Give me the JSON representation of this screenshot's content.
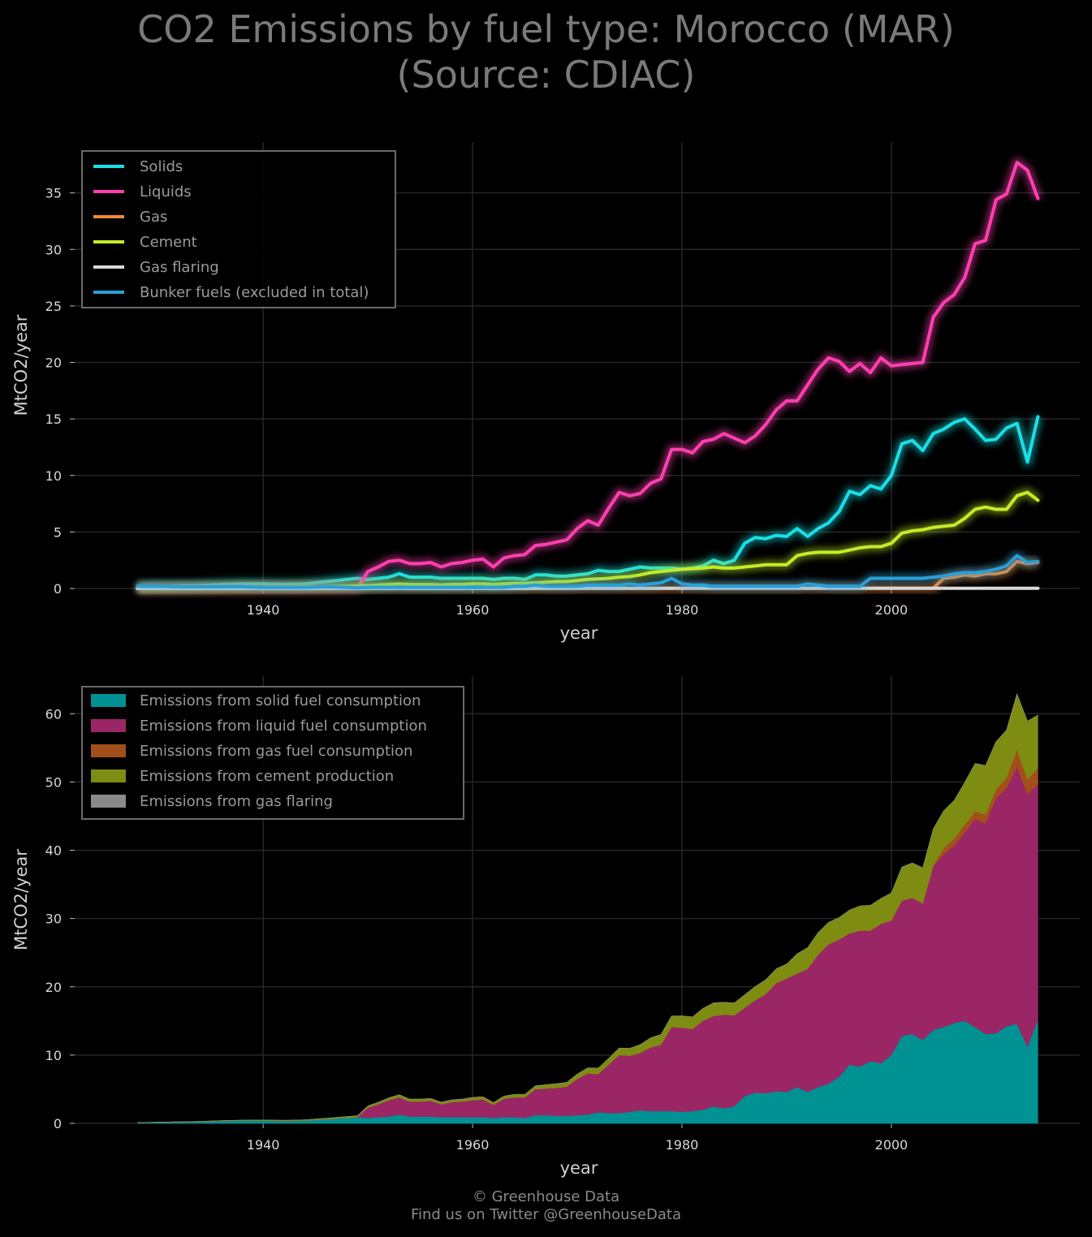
{
  "title": {
    "line1": "CO2 Emissions by fuel type: Morocco (MAR)",
    "line2": "(Source: CDIAC)"
  },
  "footer": {
    "line1": "© Greenhouse Data",
    "line2": "Find us on Twitter @GreenhouseData"
  },
  "colors": {
    "background": "#000000",
    "grid": "#262626",
    "solids": "#19dfe6",
    "liquids": "#ff3eb0",
    "gas": "#f0883a",
    "cement": "#c4ec28",
    "gas_flaring": "#d9d9d9",
    "bunker": "#2a9fd6",
    "solid_area": "#009192",
    "liquid_area": "#9a2666",
    "gas_area": "#a34f1a",
    "cement_area": "#7f8c12",
    "flaring_area": "#8a8a8a"
  },
  "chart_data": [
    {
      "type": "line",
      "xlabel": "year",
      "ylabel": "MtCO2/year",
      "xlim": [
        1922,
        2018
      ],
      "ylim": [
        0,
        39.5
      ],
      "x_ticks": [
        1940,
        1960,
        1980,
        2000
      ],
      "y_ticks": [
        0,
        5,
        10,
        15,
        20,
        25,
        30,
        35
      ],
      "grid": true,
      "legend_position": "top-left",
      "x": [
        1928,
        1930,
        1932,
        1934,
        1936,
        1938,
        1940,
        1942,
        1944,
        1946,
        1948,
        1949,
        1950,
        1951,
        1952,
        1953,
        1954,
        1955,
        1956,
        1957,
        1958,
        1959,
        1960,
        1961,
        1962,
        1963,
        1964,
        1965,
        1966,
        1967,
        1968,
        1969,
        1970,
        1971,
        1972,
        1973,
        1974,
        1975,
        1976,
        1977,
        1978,
        1979,
        1980,
        1981,
        1982,
        1983,
        1984,
        1985,
        1986,
        1987,
        1988,
        1989,
        1990,
        1991,
        1992,
        1993,
        1994,
        1995,
        1996,
        1997,
        1998,
        1999,
        2000,
        2001,
        2002,
        2003,
        2004,
        2005,
        2006,
        2007,
        2008,
        2009,
        2010,
        2011,
        2012,
        2013,
        2014
      ],
      "series": [
        {
          "name": "Solids",
          "color": "#19dfe6",
          "values": [
            0.1,
            0.15,
            0.2,
            0.25,
            0.35,
            0.4,
            0.4,
            0.35,
            0.4,
            0.6,
            0.8,
            0.9,
            0.8,
            0.9,
            1.0,
            1.3,
            1.0,
            1.0,
            1.0,
            0.9,
            0.9,
            0.9,
            0.9,
            0.9,
            0.8,
            0.9,
            0.9,
            0.8,
            1.2,
            1.2,
            1.1,
            1.1,
            1.2,
            1.3,
            1.6,
            1.5,
            1.5,
            1.7,
            1.9,
            1.8,
            1.8,
            1.8,
            1.7,
            1.8,
            2.0,
            2.5,
            2.2,
            2.5,
            4.0,
            4.5,
            4.4,
            4.7,
            4.6,
            5.3,
            4.6,
            5.3,
            5.8,
            6.8,
            8.6,
            8.3,
            9.1,
            8.8,
            10.0,
            12.8,
            13.1,
            12.2,
            13.7,
            14.1,
            14.7,
            15.0,
            14.1,
            13.1,
            13.2,
            14.2,
            14.6,
            11.2,
            15.2
          ]
        },
        {
          "name": "Liquids",
          "color": "#ff3eb0",
          "values": [
            0,
            0,
            0,
            0,
            0,
            0,
            0,
            0,
            0,
            0,
            0,
            0,
            1.5,
            1.9,
            2.4,
            2.5,
            2.2,
            2.2,
            2.3,
            1.9,
            2.2,
            2.3,
            2.5,
            2.6,
            1.9,
            2.7,
            2.9,
            3.0,
            3.8,
            3.9,
            4.1,
            4.3,
            5.3,
            6.0,
            5.6,
            7.1,
            8.5,
            8.2,
            8.4,
            9.3,
            9.7,
            12.3,
            12.3,
            12.0,
            13.0,
            13.2,
            13.7,
            13.3,
            12.9,
            13.5,
            14.5,
            15.8,
            16.6,
            16.6,
            18.0,
            19.4,
            20.4,
            20.1,
            19.2,
            19.9,
            19.1,
            20.4,
            19.7,
            19.8,
            19.9,
            20.0,
            24.0,
            25.3,
            26.0,
            27.5,
            30.5,
            30.8,
            34.4,
            34.9,
            37.7,
            37.0,
            34.5
          ]
        },
        {
          "name": "Gas",
          "color": "#f0883a",
          "values": [
            0,
            0,
            0,
            0,
            0,
            0,
            0,
            0,
            0,
            0,
            0,
            0,
            0,
            0,
            0,
            0,
            0,
            0,
            0,
            0,
            0,
            0,
            0,
            0,
            0,
            0,
            0,
            0,
            0,
            0,
            0,
            0,
            0.02,
            0.02,
            0.02,
            0.02,
            0.02,
            0.02,
            0.02,
            0.02,
            0.02,
            0.02,
            0.03,
            0.03,
            0.03,
            0.03,
            0.03,
            0.03,
            0.03,
            0.03,
            0.03,
            0.03,
            0.03,
            0.03,
            0.03,
            0.03,
            0.03,
            0.03,
            0.03,
            0.03,
            0.03,
            0.03,
            0.03,
            0.03,
            0.03,
            0.03,
            0.03,
            0.9,
            1.0,
            1.2,
            1.1,
            1.3,
            1.3,
            1.5,
            2.4,
            2.2,
            2.3
          ]
        },
        {
          "name": "Cement",
          "color": "#c4ec28",
          "values": [
            0.02,
            0.03,
            0.04,
            0.05,
            0.06,
            0.08,
            0.1,
            0.1,
            0.12,
            0.15,
            0.2,
            0.22,
            0.25,
            0.3,
            0.35,
            0.4,
            0.35,
            0.35,
            0.35,
            0.3,
            0.35,
            0.35,
            0.4,
            0.4,
            0.35,
            0.4,
            0.45,
            0.45,
            0.5,
            0.55,
            0.6,
            0.6,
            0.7,
            0.8,
            0.85,
            0.9,
            1.0,
            1.05,
            1.2,
            1.4,
            1.5,
            1.6,
            1.7,
            1.75,
            1.8,
            1.9,
            1.8,
            1.8,
            1.9,
            2.0,
            2.1,
            2.1,
            2.1,
            2.9,
            3.1,
            3.2,
            3.2,
            3.2,
            3.4,
            3.6,
            3.7,
            3.7,
            4.0,
            4.9,
            5.1,
            5.2,
            5.4,
            5.5,
            5.6,
            6.2,
            7.0,
            7.2,
            7.0,
            7.0,
            8.2,
            8.5,
            7.8
          ]
        },
        {
          "name": "Gas flaring",
          "color": "#d9d9d9",
          "values": [
            0,
            0,
            0,
            0,
            0,
            0,
            0,
            0,
            0,
            0,
            0,
            0,
            0,
            0,
            0,
            0,
            0,
            0,
            0,
            0,
            0,
            0,
            0,
            0,
            0,
            0,
            0,
            0,
            0.02,
            0.02,
            0.02,
            0.02,
            0.02,
            0.02,
            0.02,
            0.02,
            0.02,
            0.02,
            0.02,
            0.02,
            0.02,
            0.02,
            0.02,
            0.02,
            0.02,
            0.02,
            0.02,
            0.02,
            0.02,
            0.02,
            0.02,
            0.02,
            0.02,
            0.02,
            0.02,
            0.02,
            0.02,
            0.02,
            0.02,
            0.02,
            0.02,
            0.02,
            0.02,
            0.02,
            0.02,
            0.02,
            0.02,
            0.02,
            0.02,
            0.02,
            0.02,
            0.02,
            0.02,
            0.02,
            0.02,
            0.02,
            0.02
          ]
        },
        {
          "name": "Bunker fuels (excluded in total)",
          "color": "#2a9fd6",
          "values": [
            0.2,
            0.2,
            0.15,
            0.15,
            0.15,
            0.15,
            0.1,
            0.1,
            0.1,
            0.15,
            0.1,
            0.05,
            0.1,
            0.1,
            0.1,
            0.1,
            0.1,
            0.1,
            0.1,
            0.1,
            0.1,
            0.1,
            0.1,
            0.1,
            0.1,
            0.1,
            0.2,
            0.2,
            0.3,
            0.2,
            0.2,
            0.2,
            0.2,
            0.3,
            0.3,
            0.3,
            0.3,
            0.4,
            0.3,
            0.4,
            0.5,
            0.9,
            0.4,
            0.3,
            0.3,
            0.2,
            0.2,
            0.2,
            0.2,
            0.2,
            0.2,
            0.2,
            0.2,
            0.2,
            0.4,
            0.3,
            0.2,
            0.2,
            0.2,
            0.2,
            0.9,
            0.9,
            0.9,
            0.9,
            0.9,
            0.9,
            1.0,
            1.1,
            1.3,
            1.4,
            1.4,
            1.5,
            1.7,
            2.0,
            2.9,
            2.3,
            2.4
          ]
        }
      ]
    },
    {
      "type": "area",
      "stacked": true,
      "xlabel": "year",
      "ylabel": "MtCO2/year",
      "xlim": [
        1922,
        2018
      ],
      "ylim": [
        0,
        65.5
      ],
      "x_ticks": [
        1940,
        1960,
        1980,
        2000
      ],
      "y_ticks": [
        0,
        10,
        20,
        30,
        40,
        50,
        60
      ],
      "grid": true,
      "legend_position": "top-left",
      "series_source": "first chart: Solids, Liquids, Gas, Cement, Gas flaring (bunker fuels excluded)",
      "series": [
        {
          "name": "Emissions from solid fuel consumption",
          "color": "#009192",
          "source": "Solids"
        },
        {
          "name": "Emissions from liquid fuel consumption",
          "color": "#9a2666",
          "source": "Liquids"
        },
        {
          "name": "Emissions from gas fuel consumption",
          "color": "#a34f1a",
          "source": "Gas"
        },
        {
          "name": "Emissions from cement production",
          "color": "#7f8c12",
          "source": "Cement"
        },
        {
          "name": "Emissions from gas flaring",
          "color": "#8a8a8a",
          "source": "Gas flaring"
        }
      ]
    }
  ]
}
